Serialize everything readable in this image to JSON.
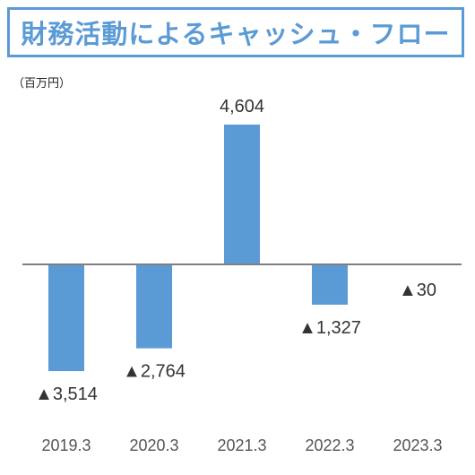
{
  "title": "財務活動によるキャッシュ・フロー",
  "unit_label": "（百万円）",
  "colors": {
    "accent": "#5b9bd5",
    "bar": "#5b9bd5",
    "axis": "#7f7f7f"
  },
  "chart_data": {
    "type": "bar",
    "categories": [
      "2019.3",
      "2020.3",
      "2021.3",
      "2022.3",
      "2023.3"
    ],
    "values": [
      -3514,
      -2764,
      4604,
      -1327,
      -30
    ],
    "data_labels": [
      "▲3,514",
      "▲2,764",
      "4,604",
      "▲1,327",
      "▲30"
    ],
    "title": "財務活動によるキャッシュ・フロー",
    "ylabel": "（百万円）",
    "grid": false,
    "legend": "none"
  }
}
